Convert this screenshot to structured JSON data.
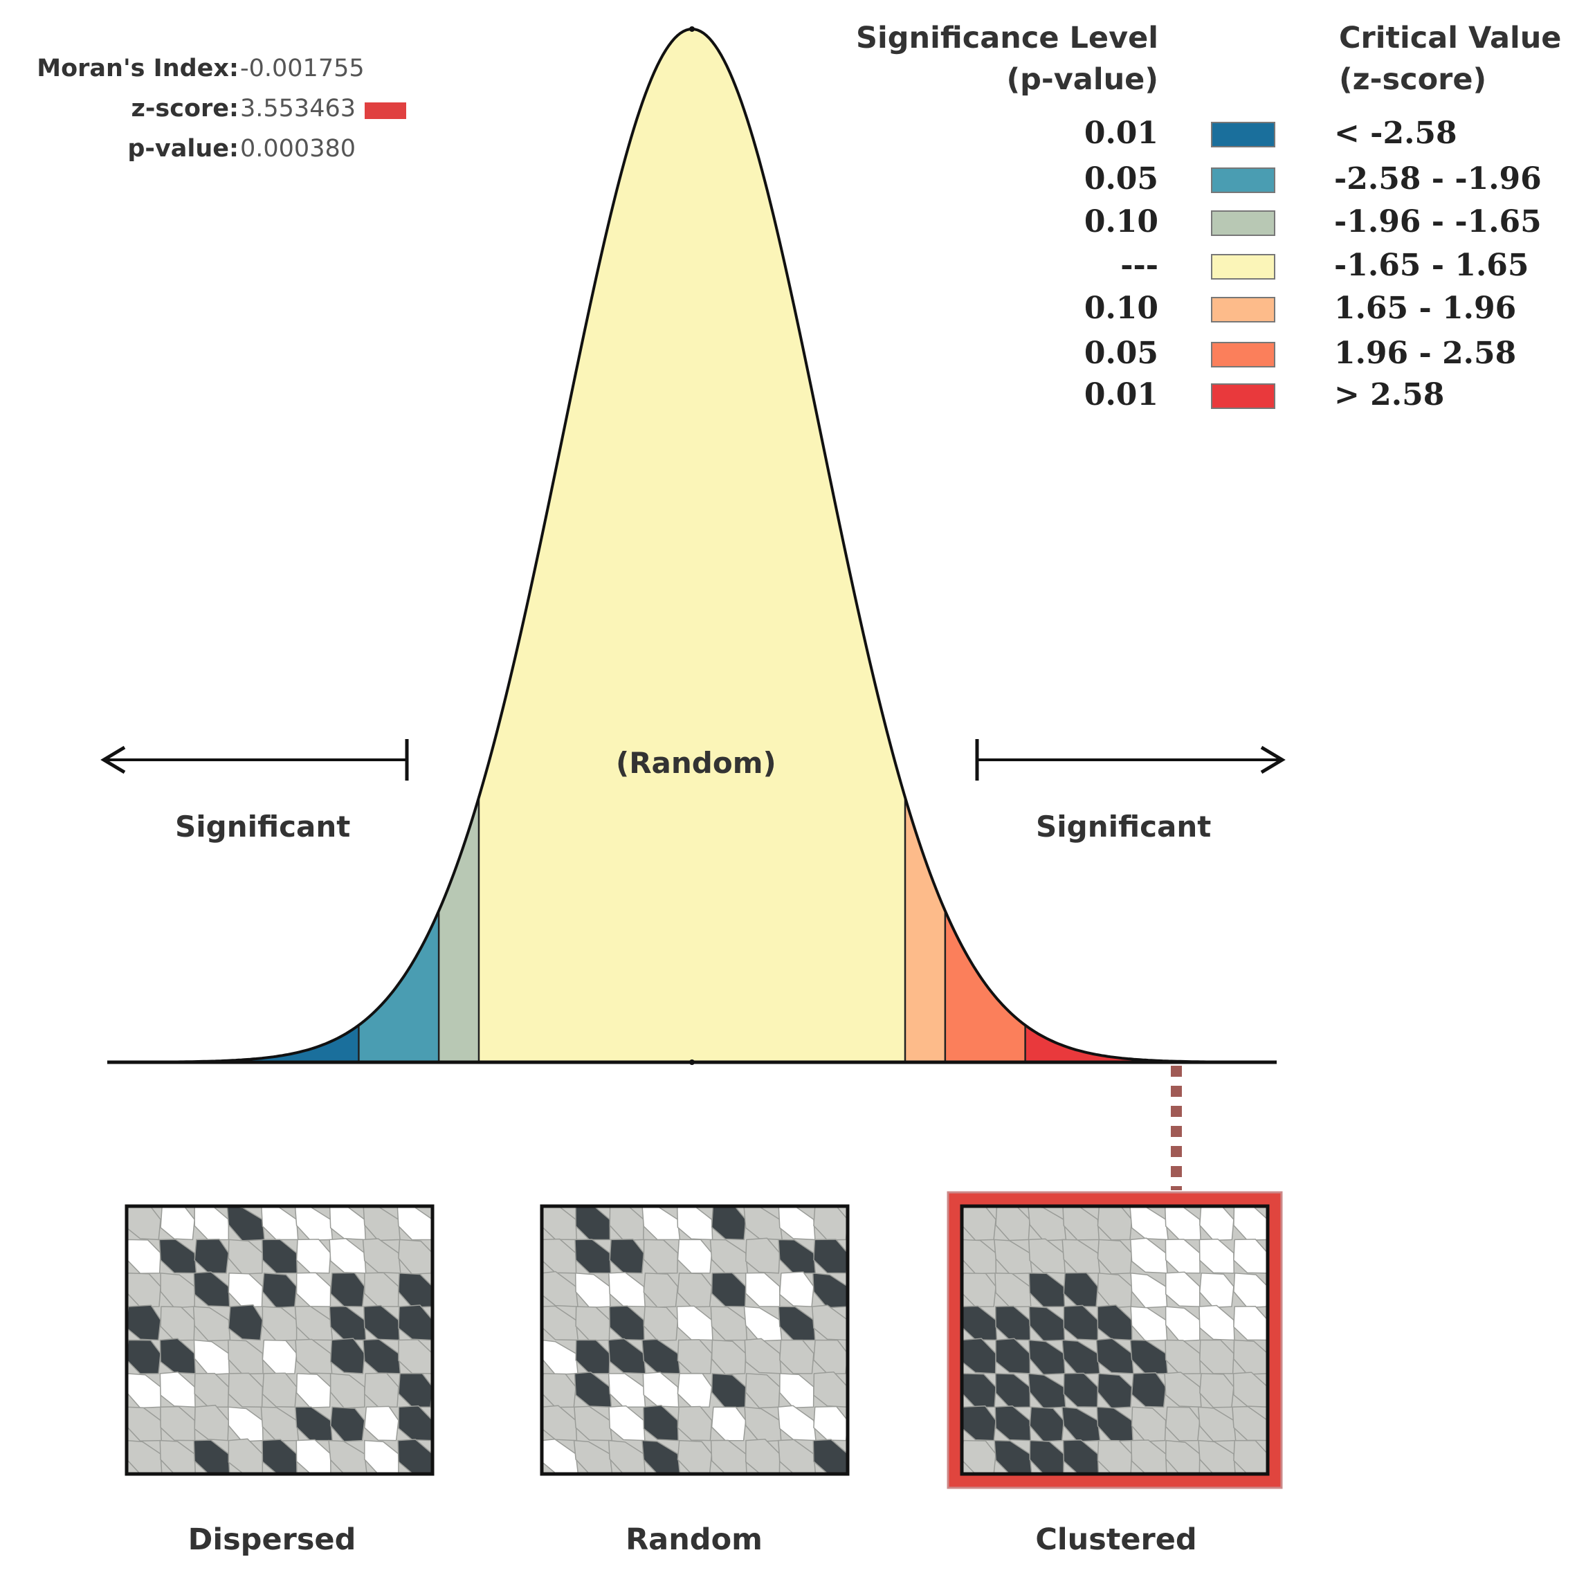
{
  "stats": {
    "morans_index_label": "Moran's Index:",
    "morans_index_value": "-0.001755",
    "z_score_label": "z-score:",
    "z_score_value": "3.553463",
    "p_value_label": "p-value:",
    "p_value_value": "0.000380",
    "z_marker_color": "#e04040"
  },
  "legend": {
    "sig_header_line1": "Significance Level",
    "sig_header_line2": "(p-value)",
    "crit_header_line1": "Critical Value",
    "crit_header_line2": "(z-score)",
    "rows": [
      {
        "p": "0.01",
        "z": "< -2.58",
        "color": "#1a6f9c"
      },
      {
        "p": "0.05",
        "z": "-2.58 - -1.96",
        "color": "#4a9db2"
      },
      {
        "p": "0.10",
        "z": "-1.96 - -1.65",
        "color": "#b8c8b4"
      },
      {
        "p": "---",
        "z": "-1.65 - 1.65",
        "color": "#fbf5b8"
      },
      {
        "p": "0.10",
        "z": "1.65 - 1.96",
        "color": "#fdbb8a"
      },
      {
        "p": "0.05",
        "z": "1.96 - 2.58",
        "color": "#fb7f5b"
      },
      {
        "p": "0.01",
        "z": "> 2.58",
        "color": "#e9393c"
      }
    ]
  },
  "curve": {
    "center_label": "(Random)",
    "left_label": "Significant",
    "right_label": "Significant",
    "cutoffs": [
      -2.58,
      -1.96,
      -1.65,
      1.65,
      1.96,
      2.58
    ],
    "z_range": [
      -4.5,
      4.5
    ],
    "outline_color": "#111111"
  },
  "maps": [
    {
      "caption": "Dispersed",
      "highlighted": false
    },
    {
      "caption": "Random",
      "highlighted": false
    },
    {
      "caption": "Clustered",
      "highlighted": true
    }
  ],
  "colors": {
    "dark_polygon": "#3d4448",
    "light_polygon": "#c9cac6",
    "empty_polygon": "#ffffff",
    "highlight_border": "#e0453e",
    "connector": "#a05a55"
  }
}
